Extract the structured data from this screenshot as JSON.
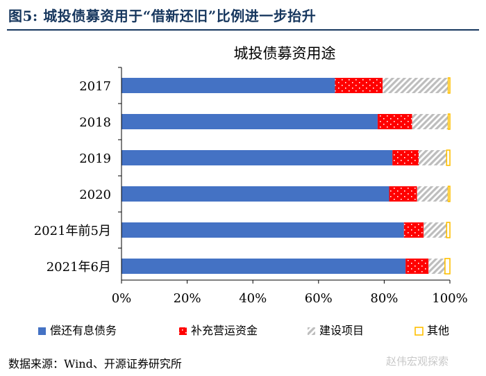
{
  "figure": {
    "title": "图5:  城投债募资用于“借新还旧”比例进一步抬升",
    "source": "数据来源：Wind、开源证券研究所",
    "watermark": "赵伟宏观探索"
  },
  "chart_data": {
    "type": "bar",
    "orientation": "horizontal",
    "stacked": true,
    "title": "城投债募资用途",
    "categories": [
      "2017",
      "2018",
      "2019",
      "2020",
      "2021年前5月",
      "2021年6月"
    ],
    "series": [
      {
        "name": "偿还有息债务",
        "values": [
          65,
          78,
          82.5,
          81.5,
          86,
          86.5
        ],
        "color": "#4472c4",
        "pattern": "solid"
      },
      {
        "name": "补充营运资金",
        "values": [
          14.5,
          10.5,
          8,
          8.5,
          6,
          7
        ],
        "color": "#ff0000",
        "pattern": "dots"
      },
      {
        "name": "建设项目",
        "values": [
          20,
          11,
          8.5,
          9.5,
          7,
          5
        ],
        "color": "#d0d0d0",
        "pattern": "hatch"
      },
      {
        "name": "其他",
        "values": [
          0.5,
          0.5,
          1,
          0.5,
          1,
          1.5
        ],
        "color": "#ffc000",
        "pattern": "outline"
      }
    ],
    "xlim": [
      0,
      100
    ],
    "xticks": [
      "0%",
      "20%",
      "40%",
      "60%",
      "80%",
      "100%"
    ],
    "legend_position": "bottom",
    "grid": false
  }
}
